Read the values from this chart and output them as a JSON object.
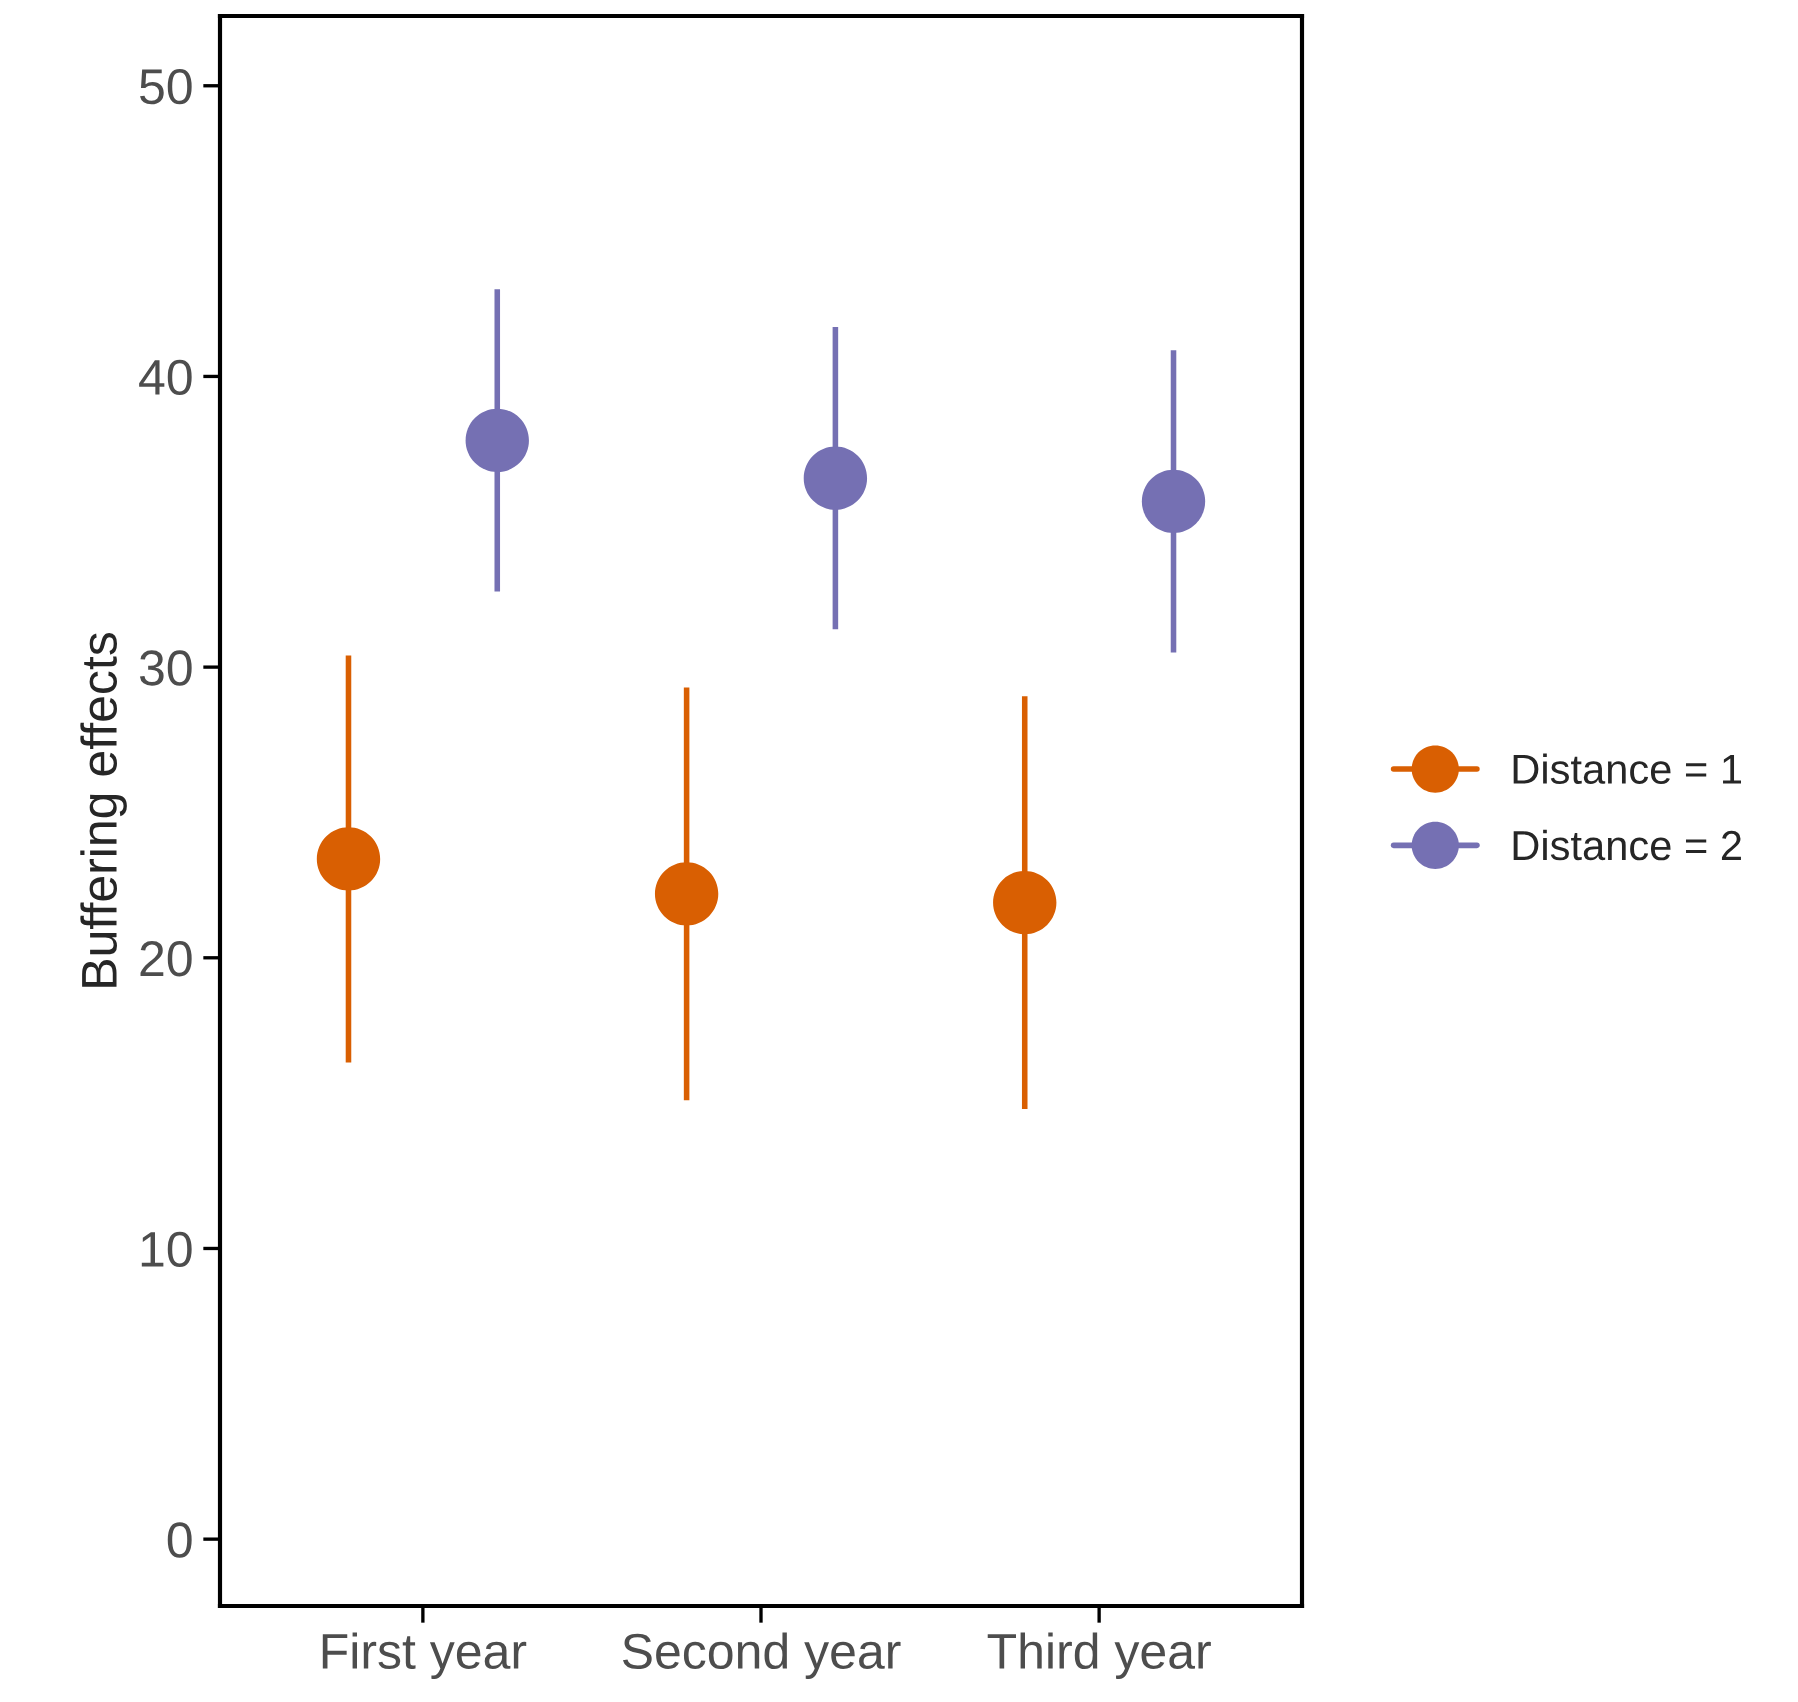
{
  "chart_data": {
    "type": "scatter",
    "ylabel": "Buffering effects",
    "categories": [
      "First year",
      "Second year",
      "Third year"
    ],
    "series": [
      {
        "name": "Distance = 1",
        "color": "#d95f02",
        "values": [
          23.4,
          22.2,
          21.9
        ],
        "errors": [
          [
            16.4,
            30.4
          ],
          [
            15.1,
            29.3
          ],
          [
            14.8,
            29.0
          ]
        ]
      },
      {
        "name": "Distance = 2",
        "color": "#7570b3",
        "values": [
          37.8,
          36.5,
          35.7
        ],
        "errors": [
          [
            32.6,
            43.0
          ],
          [
            31.3,
            41.7
          ],
          [
            30.5,
            40.9
          ]
        ]
      }
    ],
    "ylim": [
      -2.3,
      52.4
    ],
    "yticks": [
      0,
      10,
      20,
      30,
      40,
      50
    ],
    "marker": "circle",
    "grid": false,
    "legend": "right"
  }
}
